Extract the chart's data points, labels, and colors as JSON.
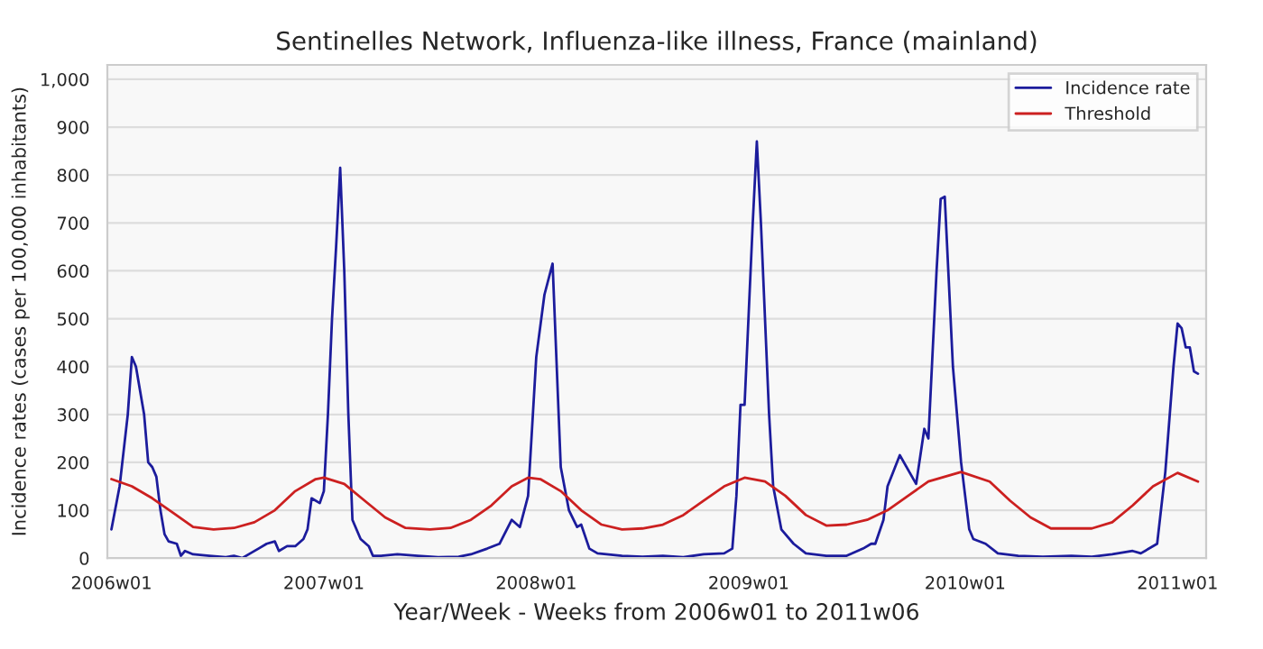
{
  "chart_data": {
    "type": "line",
    "title": "Sentinelles Network, Influenza-like illness, France (mainland)",
    "xlabel": "Year/Week - Weeks from 2006w01 to 2011w06",
    "ylabel": "Incidence rates (cases per 100,000 inhabitants)",
    "xlim": [
      "2005-12-29",
      "2011-02-24"
    ],
    "ylim": [
      0,
      1030
    ],
    "xticks": [
      {
        "value": "2006-01-05",
        "label": "2006w01"
      },
      {
        "value": "2007-01-04",
        "label": "2007w01"
      },
      {
        "value": "2008-01-03",
        "label": "2008w01"
      },
      {
        "value": "2009-01-01",
        "label": "2009w01"
      },
      {
        "value": "2010-01-07",
        "label": "2010w01"
      },
      {
        "value": "2011-01-06",
        "label": "2011w01"
      }
    ],
    "yticks": [
      0,
      100,
      200,
      300,
      400,
      500,
      600,
      700,
      800,
      900,
      {
        "value": 1000,
        "label": "1,000"
      }
    ],
    "grid": "y",
    "legend": "top right",
    "marker": "none",
    "line_style": "solid",
    "series": [
      {
        "name": "Incidence rate",
        "color": "#1c1c9c",
        "x": [
          "2006-01-05",
          "2006-01-19",
          "2006-02-02",
          "2006-02-09",
          "2006-02-16",
          "2006-03-02",
          "2006-03-09",
          "2006-03-16",
          "2006-03-23",
          "2006-03-30",
          "2006-04-06",
          "2006-04-13",
          "2006-04-27",
          "2006-05-04",
          "2006-05-11",
          "2006-05-25",
          "2006-06-22",
          "2006-07-20",
          "2006-08-03",
          "2006-08-17",
          "2006-08-31",
          "2006-09-14",
          "2006-09-28",
          "2006-10-12",
          "2006-10-19",
          "2006-11-02",
          "2006-11-16",
          "2006-11-30",
          "2006-12-07",
          "2006-12-14",
          "2006-12-28",
          "2007-01-04",
          "2007-01-11",
          "2007-01-18",
          "2007-01-25",
          "2007-02-01",
          "2007-02-08",
          "2007-02-15",
          "2007-02-22",
          "2007-03-08",
          "2007-03-22",
          "2007-03-29",
          "2007-04-12",
          "2007-05-10",
          "2007-06-14",
          "2007-07-19",
          "2007-08-23",
          "2007-09-13",
          "2007-10-11",
          "2007-11-01",
          "2007-11-22",
          "2007-12-06",
          "2007-12-20",
          "2008-01-03",
          "2008-01-17",
          "2008-01-31",
          "2008-02-14",
          "2008-02-28",
          "2008-03-13",
          "2008-03-20",
          "2008-04-03",
          "2008-04-17",
          "2008-05-29",
          "2008-07-03",
          "2008-08-07",
          "2008-09-11",
          "2008-10-16",
          "2008-11-20",
          "2008-12-04",
          "2008-12-11",
          "2008-12-18",
          "2008-12-25",
          "2009-01-08",
          "2009-01-15",
          "2009-01-22",
          "2009-02-05",
          "2009-02-12",
          "2009-02-26",
          "2009-03-19",
          "2009-04-09",
          "2009-05-14",
          "2009-06-18",
          "2009-07-16",
          "2009-07-30",
          "2009-08-06",
          "2009-08-20",
          "2009-08-27",
          "2009-09-17",
          "2009-10-15",
          "2009-10-29",
          "2009-11-05",
          "2009-11-19",
          "2009-11-26",
          "2009-12-03",
          "2009-12-17",
          "2009-12-31",
          "2010-01-14",
          "2010-01-21",
          "2010-02-11",
          "2010-03-04",
          "2010-04-08",
          "2010-05-20",
          "2010-07-08",
          "2010-08-12",
          "2010-09-16",
          "2010-10-21",
          "2010-11-04",
          "2010-12-02",
          "2010-12-16",
          "2010-12-30",
          "2011-01-06",
          "2011-01-13",
          "2011-01-20",
          "2011-01-27",
          "2011-02-03",
          "2011-02-10"
        ],
        "values": [
          60,
          150,
          300,
          420,
          400,
          300,
          200,
          190,
          170,
          100,
          50,
          35,
          30,
          5,
          15,
          8,
          5,
          2,
          5,
          0,
          10,
          20,
          30,
          35,
          15,
          25,
          25,
          40,
          60,
          125,
          115,
          140,
          300,
          500,
          650,
          815,
          600,
          300,
          80,
          40,
          25,
          5,
          5,
          8,
          5,
          2,
          3,
          8,
          20,
          30,
          80,
          65,
          130,
          420,
          550,
          615,
          190,
          100,
          65,
          70,
          20,
          10,
          5,
          3,
          5,
          2,
          8,
          10,
          20,
          130,
          320,
          320,
          700,
          870,
          700,
          300,
          150,
          60,
          30,
          10,
          5,
          5,
          20,
          30,
          30,
          80,
          150,
          215,
          155,
          270,
          250,
          600,
          750,
          755,
          400,
          200,
          60,
          40,
          30,
          10,
          5,
          3,
          5,
          3,
          8,
          15,
          10,
          30,
          180,
          400,
          490,
          480,
          440,
          440,
          390,
          385
        ]
      },
      {
        "name": "Threshold",
        "color": "#cc2020",
        "x": [
          "2006-01-05",
          "2006-02-09",
          "2006-03-16",
          "2006-04-20",
          "2006-05-25",
          "2006-06-29",
          "2006-08-03",
          "2006-09-07",
          "2006-10-12",
          "2006-11-16",
          "2006-12-21",
          "2007-01-04",
          "2007-02-08",
          "2007-03-15",
          "2007-04-19",
          "2007-05-24",
          "2007-07-05",
          "2007-08-09",
          "2007-09-13",
          "2007-10-18",
          "2007-11-22",
          "2007-12-20",
          "2008-01-10",
          "2008-02-14",
          "2008-03-20",
          "2008-04-24",
          "2008-05-29",
          "2008-07-03",
          "2008-08-07",
          "2008-09-11",
          "2008-10-16",
          "2008-11-20",
          "2008-12-25",
          "2009-01-29",
          "2009-03-05",
          "2009-04-09",
          "2009-05-14",
          "2009-06-18",
          "2009-07-23",
          "2009-08-27",
          "2009-10-01",
          "2009-11-05",
          "2009-12-31",
          "2010-02-18",
          "2010-03-25",
          "2010-04-29",
          "2010-06-03",
          "2010-08-12",
          "2010-09-16",
          "2010-10-21",
          "2010-11-25",
          "2011-01-06",
          "2011-02-10"
        ],
        "values": [
          165,
          150,
          125,
          95,
          65,
          60,
          63,
          75,
          100,
          140,
          165,
          168,
          155,
          120,
          85,
          63,
          60,
          63,
          80,
          110,
          150,
          168,
          165,
          140,
          100,
          70,
          60,
          62,
          70,
          90,
          120,
          150,
          168,
          160,
          130,
          90,
          68,
          70,
          80,
          100,
          130,
          160,
          180,
          160,
          120,
          85,
          62,
          62,
          75,
          110,
          150,
          178,
          160
        ]
      }
    ]
  }
}
